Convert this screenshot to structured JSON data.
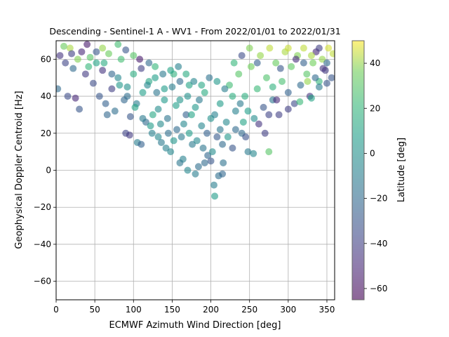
{
  "chart_data": {
    "type": "scatter",
    "title": "Descending - Sentinel-1 A - WV1 - From 2022/01/01 to 2022/01/31",
    "xlabel": "ECMWF Azimuth Wind Direction [deg]",
    "ylabel": "Geophysical Doppler Centroid [Hz]",
    "xlim": [
      0,
      360
    ],
    "ylim": [
      -70,
      70
    ],
    "xticks": [
      "0",
      "50",
      "100",
      "150",
      "200",
      "250",
      "300",
      "350"
    ],
    "yticks": [
      "−60",
      "−40",
      "−20",
      "0",
      "20",
      "40",
      "60"
    ],
    "grid": true,
    "colorbar": {
      "label": "Latitude [deg]",
      "range": [
        -65,
        50
      ],
      "ticks": [
        "40",
        "20",
        "0",
        "−20",
        "−40",
        "−60"
      ],
      "colormap": "viridis"
    },
    "points": [
      [
        5,
        62,
        -45
      ],
      [
        12,
        58,
        -38
      ],
      [
        18,
        66,
        42
      ],
      [
        22,
        55,
        -20
      ],
      [
        28,
        60,
        38
      ],
      [
        33,
        64,
        -50
      ],
      [
        38,
        52,
        -42
      ],
      [
        44,
        61,
        30
      ],
      [
        48,
        47,
        -35
      ],
      [
        52,
        58,
        10
      ],
      [
        56,
        40,
        -30
      ],
      [
        60,
        54,
        -45
      ],
      [
        64,
        36,
        -25
      ],
      [
        68,
        63,
        35
      ],
      [
        72,
        44,
        -40
      ],
      [
        76,
        32,
        -18
      ],
      [
        80,
        50,
        -5
      ],
      [
        84,
        60,
        25
      ],
      [
        88,
        38,
        -22
      ],
      [
        92,
        45,
        0
      ],
      [
        96,
        29,
        -30
      ],
      [
        100,
        52,
        15
      ],
      [
        104,
        36,
        -10
      ],
      [
        108,
        60,
        -55
      ],
      [
        112,
        42,
        8
      ],
      [
        116,
        26,
        -20
      ],
      [
        120,
        48,
        12
      ],
      [
        124,
        20,
        -8
      ],
      [
        128,
        56,
        20
      ],
      [
        132,
        33,
        -2
      ],
      [
        136,
        15,
        -12
      ],
      [
        140,
        44,
        6
      ],
      [
        144,
        28,
        -15
      ],
      [
        148,
        10,
        -5
      ],
      [
        152,
        52,
        18
      ],
      [
        156,
        22,
        -20
      ],
      [
        160,
        38,
        2
      ],
      [
        164,
        6,
        -8
      ],
      [
        168,
        30,
        -25
      ],
      [
        172,
        46,
        10
      ],
      [
        176,
        14,
        -12
      ],
      [
        180,
        34,
        4
      ],
      [
        184,
        2,
        -18
      ],
      [
        188,
        24,
        -6
      ],
      [
        192,
        42,
        14
      ],
      [
        196,
        8,
        -22
      ],
      [
        200,
        28,
        0
      ],
      [
        204,
        -8,
        -10
      ],
      [
        208,
        18,
        -28
      ],
      [
        212,
        36,
        6
      ],
      [
        216,
        4,
        -16
      ],
      [
        220,
        26,
        -4
      ],
      [
        224,
        46,
        24
      ],
      [
        228,
        12,
        -30
      ],
      [
        232,
        32,
        -8
      ],
      [
        236,
        52,
        30
      ],
      [
        240,
        20,
        -20
      ],
      [
        244,
        40,
        16
      ],
      [
        248,
        10,
        -12
      ],
      [
        252,
        56,
        36
      ],
      [
        256,
        28,
        -2
      ],
      [
        260,
        44,
        22
      ],
      [
        264,
        62,
        40
      ],
      [
        268,
        34,
        -30
      ],
      [
        272,
        50,
        28
      ],
      [
        276,
        66,
        44
      ],
      [
        280,
        38,
        -14
      ],
      [
        284,
        58,
        34
      ],
      [
        288,
        30,
        -40
      ],
      [
        292,
        48,
        26
      ],
      [
        296,
        64,
        42
      ],
      [
        300,
        42,
        -24
      ],
      [
        304,
        56,
        32
      ],
      [
        308,
        36,
        -36
      ],
      [
        312,
        62,
        38
      ],
      [
        316,
        46,
        -20
      ],
      [
        320,
        66,
        44
      ],
      [
        324,
        52,
        30
      ],
      [
        328,
        40,
        -45
      ],
      [
        332,
        58,
        36
      ],
      [
        336,
        64,
        -50
      ],
      [
        340,
        48,
        20
      ],
      [
        344,
        60,
        40
      ],
      [
        348,
        54,
        -42
      ],
      [
        352,
        66,
        46
      ],
      [
        356,
        50,
        -30
      ],
      [
        150,
        45,
        -10
      ],
      [
        160,
        48,
        -20
      ],
      [
        140,
        38,
        5
      ],
      [
        170,
        40,
        0
      ],
      [
        130,
        42,
        -15
      ],
      [
        155,
        35,
        8
      ],
      [
        165,
        25,
        -5
      ],
      [
        145,
        20,
        -18
      ],
      [
        175,
        30,
        10
      ],
      [
        185,
        38,
        -12
      ],
      [
        195,
        20,
        -25
      ],
      [
        205,
        30,
        -8
      ],
      [
        215,
        14,
        -20
      ],
      [
        125,
        30,
        12
      ],
      [
        135,
        25,
        -3
      ],
      [
        190,
        12,
        -15
      ],
      [
        200,
        5,
        -30
      ],
      [
        210,
        -3,
        -18
      ],
      [
        180,
        -2,
        -10
      ],
      [
        170,
        0,
        -5
      ],
      [
        160,
        4,
        -14
      ],
      [
        205,
        -14,
        6
      ],
      [
        215,
        -2,
        -22
      ],
      [
        110,
        55,
        -40
      ],
      [
        120,
        58,
        -20
      ],
      [
        100,
        62,
        30
      ],
      [
        230,
        58,
        20
      ],
      [
        240,
        62,
        -35
      ],
      [
        250,
        66,
        38
      ],
      [
        260,
        58,
        -25
      ],
      [
        90,
        65,
        -30
      ],
      [
        80,
        68,
        25
      ],
      [
        60,
        66,
        40
      ],
      [
        40,
        68,
        -55
      ],
      [
        20,
        63,
        -40
      ],
      [
        10,
        67,
        35
      ],
      [
        270,
        20,
        -40
      ],
      [
        275,
        10,
        30
      ],
      [
        280,
        45,
        18
      ],
      [
        290,
        55,
        -30
      ],
      [
        300,
        66,
        45
      ],
      [
        310,
        60,
        -48
      ],
      [
        320,
        58,
        -25
      ],
      [
        330,
        62,
        42
      ],
      [
        340,
        66,
        -40
      ],
      [
        350,
        58,
        -20
      ],
      [
        358,
        63,
        44
      ],
      [
        2,
        44,
        -20
      ],
      [
        15,
        40,
        -35
      ],
      [
        25,
        39,
        -50
      ],
      [
        30,
        33,
        -30
      ],
      [
        66,
        30,
        -22
      ],
      [
        90,
        20,
        -38
      ],
      [
        95,
        19,
        -42
      ],
      [
        105,
        15,
        -10
      ],
      [
        110,
        14,
        -25
      ],
      [
        245,
        18,
        -32
      ],
      [
        255,
        9,
        -5
      ],
      [
        262,
        25,
        -45
      ],
      [
        275,
        30,
        -38
      ],
      [
        285,
        38,
        -50
      ],
      [
        300,
        33,
        -40
      ],
      [
        315,
        37,
        22
      ],
      [
        330,
        39,
        10
      ],
      [
        340,
        45,
        -12
      ],
      [
        350,
        47,
        -30
      ],
      [
        345,
        55,
        -45
      ],
      [
        335,
        50,
        -20
      ],
      [
        325,
        48,
        40
      ],
      [
        118,
        46,
        -5
      ],
      [
        128,
        50,
        8
      ],
      [
        138,
        52,
        -12
      ],
      [
        148,
        54,
        10
      ],
      [
        158,
        56,
        -8
      ],
      [
        168,
        52,
        14
      ],
      [
        178,
        48,
        -6
      ],
      [
        188,
        46,
        12
      ],
      [
        198,
        50,
        -16
      ],
      [
        208,
        48,
        4
      ],
      [
        218,
        44,
        -10
      ],
      [
        228,
        40,
        16
      ],
      [
        238,
        36,
        -12
      ],
      [
        248,
        32,
        8
      ],
      [
        142,
        12,
        -8
      ],
      [
        152,
        16,
        2
      ],
      [
        162,
        18,
        -12
      ],
      [
        172,
        20,
        6
      ],
      [
        182,
        16,
        -4
      ],
      [
        192,
        4,
        -20
      ],
      [
        202,
        10,
        -2
      ],
      [
        212,
        22,
        -14
      ],
      [
        222,
        18,
        4
      ],
      [
        232,
        22,
        -20
      ],
      [
        242,
        26,
        10
      ],
      [
        132,
        18,
        -4
      ],
      [
        122,
        24,
        6
      ],
      [
        112,
        28,
        -12
      ],
      [
        102,
        34,
        10
      ],
      [
        92,
        40,
        -18
      ],
      [
        82,
        46,
        4
      ],
      [
        72,
        52,
        -22
      ],
      [
        62,
        58,
        14
      ],
      [
        52,
        64,
        -30
      ],
      [
        42,
        56,
        20
      ]
    ]
  }
}
